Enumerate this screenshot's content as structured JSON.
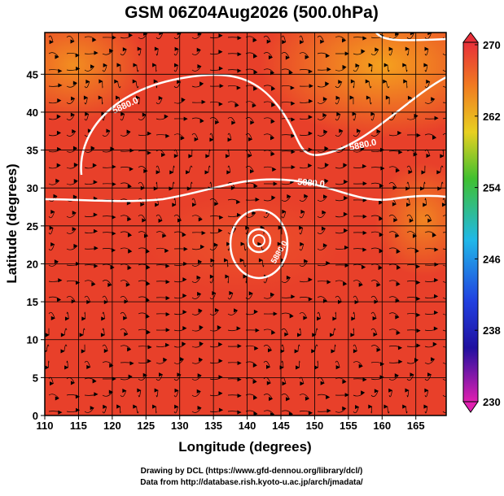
{
  "chart_data": {
    "type": "contour",
    "title": "GSM 06Z04Aug2026 (500.0hPa)",
    "xlabel": "Longitude (degrees)",
    "ylabel": "Latitude  (degrees)",
    "xlim": [
      110,
      169.5
    ],
    "ylim": [
      0,
      50.5
    ],
    "xticks": [
      110,
      115,
      120,
      125,
      130,
      135,
      140,
      145,
      150,
      155,
      160,
      165
    ],
    "yticks": [
      0,
      5,
      10,
      15,
      20,
      25,
      30,
      35,
      40,
      45
    ],
    "grid": true,
    "colorbar": {
      "lim": [
        230,
        270
      ],
      "ticks": [
        230,
        238,
        246,
        254,
        262,
        270
      ]
    },
    "contour_labels": [
      "5880.0",
      "5880.0",
      "5880.0",
      "5880.0"
    ],
    "credits": [
      "Drawing by DCL (https://www.gfd-dennou.org/library/dcl/)",
      "Data from http://database.rish.kyoto-u.ac.jp/arch/jmadata/"
    ]
  }
}
